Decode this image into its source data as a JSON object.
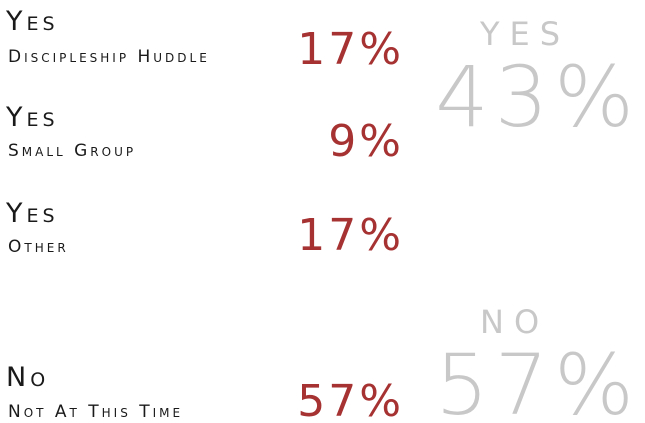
{
  "rows": [
    {
      "label": "Yes",
      "sublabel": "Discipleship Huddle",
      "value": "17%"
    },
    {
      "label": "Yes",
      "sublabel": "Small Group",
      "value": "9%"
    },
    {
      "label": "Yes",
      "sublabel": "Other",
      "value": "17%"
    },
    {
      "label": "No",
      "sublabel": "Not At This Time",
      "value": "57%"
    }
  ],
  "summary": [
    {
      "label": "YES",
      "value": "43%"
    },
    {
      "label": "NO",
      "value": "57%"
    }
  ]
}
